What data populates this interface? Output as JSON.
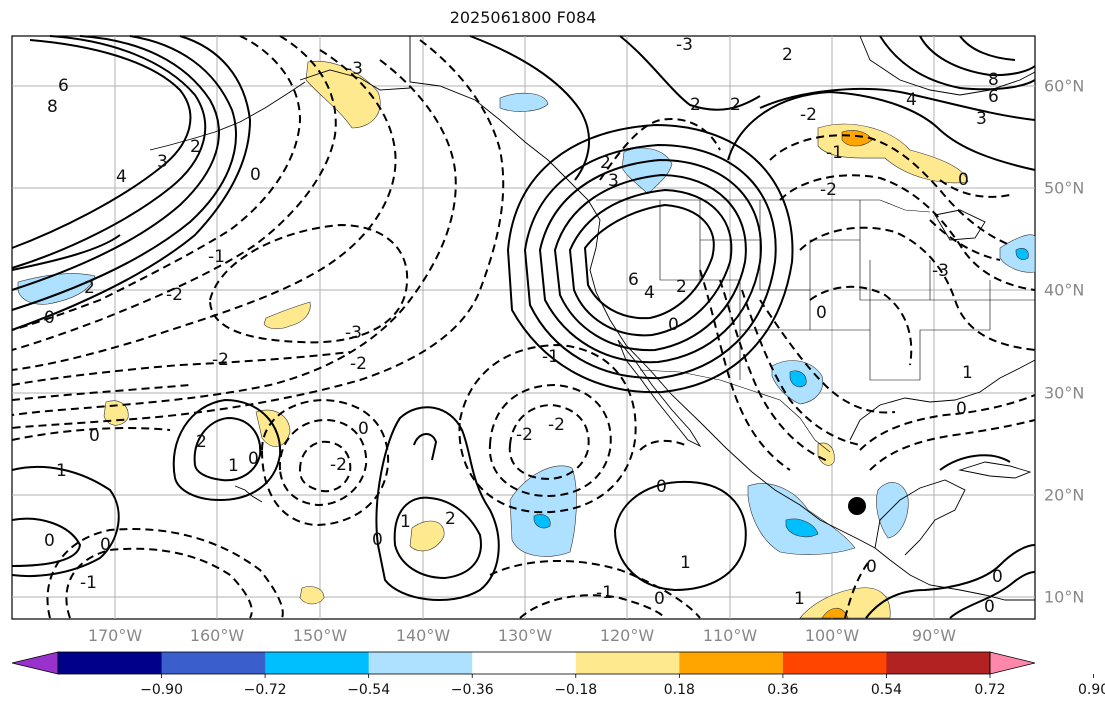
{
  "title": "2025061800 F084",
  "map": {
    "lon_labels": [
      "170°W",
      "160°W",
      "150°W",
      "140°W",
      "130°W",
      "120°W",
      "110°W",
      "100°W",
      "90°W"
    ],
    "lat_labels": [
      "60°N",
      "50°N",
      "40°N",
      "30°N",
      "20°N",
      "10°N"
    ],
    "grid_color": "#b0b0b0",
    "contour_labels": [
      "6",
      "8",
      "4",
      "3",
      "2",
      "0",
      "-1",
      "-2",
      "-3",
      "1",
      "8",
      "6",
      "4",
      "3",
      "2",
      "0",
      "-2",
      "-3",
      "1",
      "2"
    ],
    "marker": "black dot near 95°W 19°N"
  },
  "colorbar": {
    "ticks": [
      "−0.90",
      "−0.72",
      "−0.54",
      "−0.36",
      "−0.18",
      "0.18",
      "0.36",
      "0.54",
      "0.72",
      "0.90"
    ],
    "colors": [
      "#9932CC",
      "#00008B",
      "#3A5FCD",
      "#00BFFF",
      "#ADE1FF",
      "#FFFFFF",
      "#FFE98F",
      "#FFA500",
      "#FF4500",
      "#B22222",
      "#FF88AA"
    ]
  }
}
